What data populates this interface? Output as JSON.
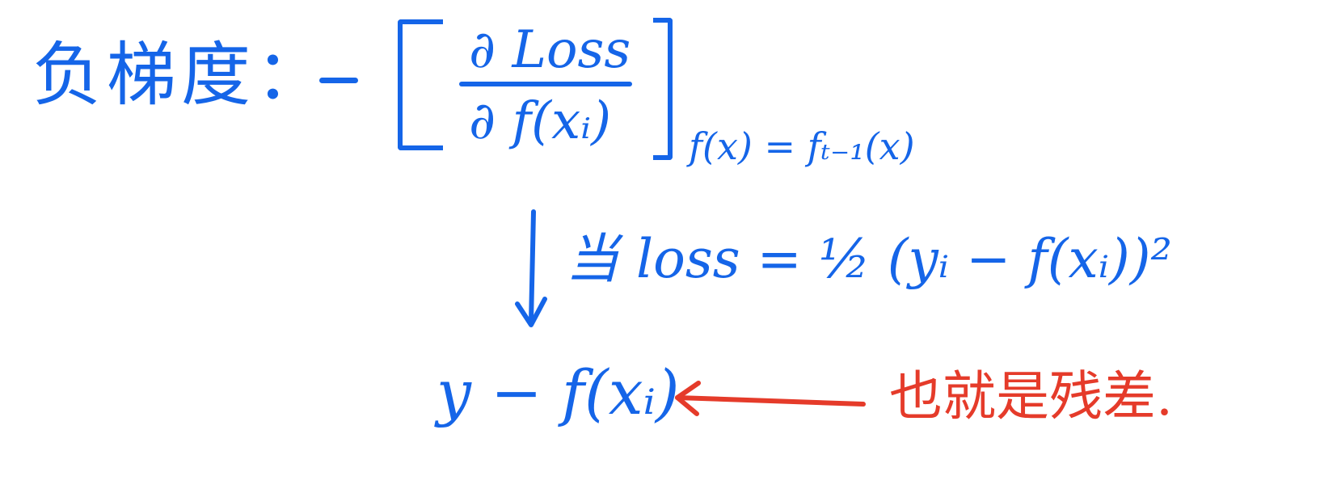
{
  "formula": {
    "label": "负梯度：",
    "minus": "−",
    "numerator": "∂ Loss",
    "denominator": "∂ f(xᵢ)",
    "evaluated_at": "f(x) = fₜ₋₁(x)"
  },
  "derivation": {
    "condition": "当 loss = ½ (yᵢ − f(xᵢ))²",
    "result": "y − f(xᵢ)",
    "note": "也就是残差."
  },
  "colors": {
    "ink_blue": "#1565e8",
    "ink_red": "#e53b2a"
  }
}
